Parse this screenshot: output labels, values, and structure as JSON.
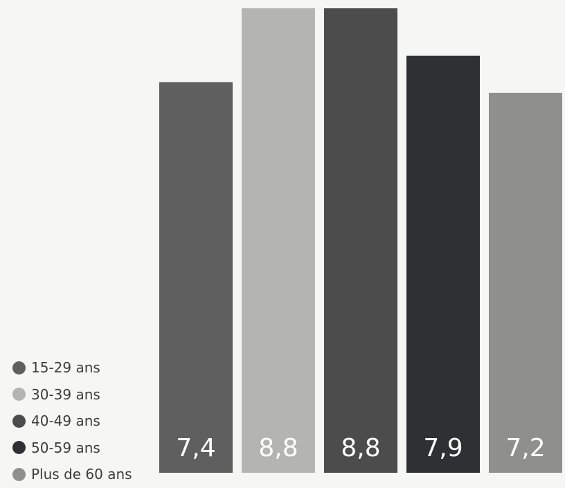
{
  "chart_data": {
    "type": "bar",
    "categories": [
      "15-29 ans",
      "30-39 ans",
      "40-49 ans",
      "50-59 ans",
      "Plus de 60 ans"
    ],
    "values": [
      7.4,
      8.8,
      8.8,
      7.9,
      7.2
    ],
    "value_labels": [
      "7,4",
      "8,8",
      "8,8",
      "7,9",
      "7,2"
    ],
    "colors": [
      "#5f5f60",
      "#b4b4b2",
      "#4c4c4c",
      "#2f3033",
      "#8f8f8e"
    ],
    "legend_position": "bottom-left",
    "grid": false,
    "title": "",
    "xlabel": "",
    "ylabel": ""
  }
}
